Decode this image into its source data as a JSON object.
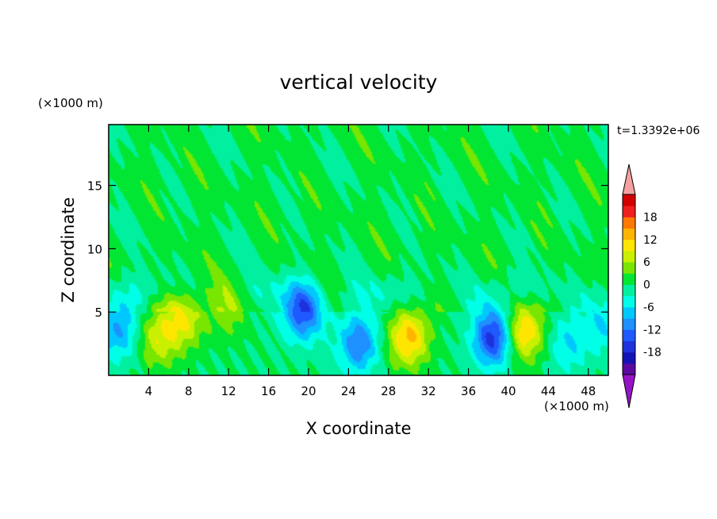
{
  "chart_data": {
    "type": "heatmap",
    "title": "vertical velocity",
    "time_label": "t=1.3392e+06",
    "xlabel": "X coordinate",
    "ylabel": "Z coordinate",
    "x_unit_label": "(×1000 m)",
    "y_unit_label": "(×1000 m)",
    "xlim": [
      0,
      50
    ],
    "ylim": [
      0,
      19.8
    ],
    "xticks": [
      4,
      8,
      12,
      16,
      20,
      24,
      28,
      32,
      36,
      40,
      44,
      48
    ],
    "yticks": [
      5,
      10,
      15
    ],
    "grid": false,
    "colorbar": {
      "tick_values": [
        18,
        12,
        6,
        0,
        -6,
        -12,
        -18
      ],
      "tick_labels": [
        "18",
        "12",
        "6",
        "0",
        "-6",
        "-12",
        "-18"
      ],
      "levels": [
        -21,
        -18,
        -15,
        -12,
        -9,
        -6,
        -3,
        0,
        3,
        6,
        9,
        12,
        15,
        18,
        21
      ],
      "colors": [
        "#5a0aa0",
        "#1414b4",
        "#1e32dc",
        "#1e5aff",
        "#1e90ff",
        "#00c8ff",
        "#00ffe6",
        "#00f0a0",
        "#00e632",
        "#78e600",
        "#c8f000",
        "#ffe600",
        "#ffb400",
        "#ff7800",
        "#f01e1e",
        "#d20000"
      ],
      "over_color": "#f5a0a0",
      "under_color": "#9614c8",
      "extend": "both"
    },
    "features": [
      {
        "x": 1.0,
        "z": 3.5,
        "w": -9
      },
      {
        "x": 5.0,
        "z": 3.0,
        "w": 8
      },
      {
        "x": 7.5,
        "z": 4.5,
        "w": 9
      },
      {
        "x": 12.0,
        "z": 5.5,
        "w": 6
      },
      {
        "x": 19.5,
        "z": 5.0,
        "w": -14
      },
      {
        "x": 25.0,
        "z": 2.5,
        "w": -12
      },
      {
        "x": 30.0,
        "z": 3.0,
        "w": 13
      },
      {
        "x": 38.5,
        "z": 3.0,
        "w": -17
      },
      {
        "x": 41.5,
        "z": 3.5,
        "w": 13
      },
      {
        "x": 46.0,
        "z": 2.5,
        "w": -6
      },
      {
        "x": 49.5,
        "z": 4.0,
        "w": -6
      }
    ]
  }
}
